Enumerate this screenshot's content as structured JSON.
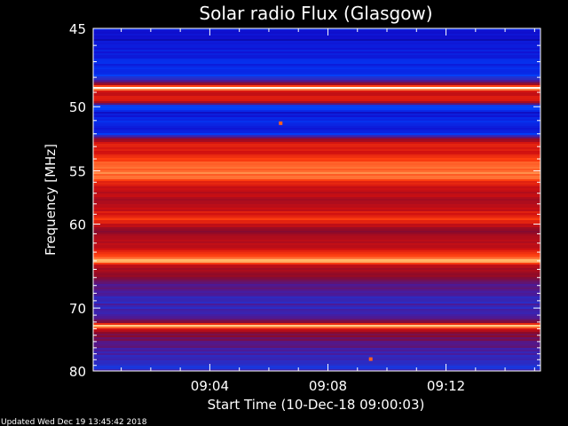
{
  "chart_data": {
    "type": "heatmap",
    "title": "Solar radio Flux (Glasgow)",
    "xlabel": "Start Time (10-Dec-18 09:00:03)",
    "ylabel": "Frequency [MHz]",
    "x_ticks": [
      "09:04",
      "09:08",
      "09:12"
    ],
    "x_tick_minutes": [
      4,
      8,
      12
    ],
    "xlim_minutes": [
      0.05,
      15.2
    ],
    "y_ticks": [
      45,
      50,
      55,
      60,
      70,
      80
    ],
    "ylim": [
      45,
      80
    ],
    "y_scale": "reciprocal",
    "colormap": [
      "#00004a",
      "#1010d0",
      "#0044ff",
      "#4a1a9a",
      "#8a0a2a",
      "#d01010",
      "#ff4010",
      "#ffc070",
      "#ffffff"
    ],
    "intensity_profile": [
      {
        "freq": 45.0,
        "level": 0.18
      },
      {
        "freq": 45.3,
        "level": 0.1
      },
      {
        "freq": 46.5,
        "level": 0.16
      },
      {
        "freq": 47.8,
        "level": 0.2
      },
      {
        "freq": 48.4,
        "level": 0.45
      },
      {
        "freq": 48.7,
        "level": 1.0
      },
      {
        "freq": 49.0,
        "level": 0.55
      },
      {
        "freq": 49.5,
        "level": 0.7
      },
      {
        "freq": 49.9,
        "level": 0.3
      },
      {
        "freq": 50.4,
        "level": 0.14
      },
      {
        "freq": 51.2,
        "level": 0.2
      },
      {
        "freq": 51.8,
        "level": 0.12
      },
      {
        "freq": 52.3,
        "level": 0.45
      },
      {
        "freq": 52.8,
        "level": 0.7
      },
      {
        "freq": 53.5,
        "level": 0.62
      },
      {
        "freq": 54.2,
        "level": 0.78
      },
      {
        "freq": 55.5,
        "level": 0.8
      },
      {
        "freq": 56.5,
        "level": 0.6
      },
      {
        "freq": 58.0,
        "level": 0.55
      },
      {
        "freq": 59.5,
        "level": 0.72
      },
      {
        "freq": 60.5,
        "level": 0.52
      },
      {
        "freq": 62.0,
        "level": 0.56
      },
      {
        "freq": 63.5,
        "level": 0.75
      },
      {
        "freq": 64.0,
        "level": 0.88
      },
      {
        "freq": 64.6,
        "level": 0.58
      },
      {
        "freq": 66.0,
        "level": 0.5
      },
      {
        "freq": 67.0,
        "level": 0.4
      },
      {
        "freq": 68.5,
        "level": 0.34
      },
      {
        "freq": 70.5,
        "level": 0.36
      },
      {
        "freq": 72.0,
        "level": 0.45
      },
      {
        "freq": 72.6,
        "level": 0.95
      },
      {
        "freq": 73.2,
        "level": 0.55
      },
      {
        "freq": 74.5,
        "level": 0.44
      },
      {
        "freq": 76.5,
        "level": 0.36
      },
      {
        "freq": 78.0,
        "level": 0.33
      },
      {
        "freq": 79.0,
        "level": 0.3
      },
      {
        "freq": 80.0,
        "level": 0.34
      }
    ],
    "bursts": [
      {
        "time_min": 6.4,
        "freq": 51.2
      },
      {
        "time_min": 9.45,
        "freq": 77.9
      }
    ],
    "grid": false,
    "legend": "none"
  },
  "footer": {
    "updated": "Updated Wed Dec 19 13:45:42 2018"
  }
}
